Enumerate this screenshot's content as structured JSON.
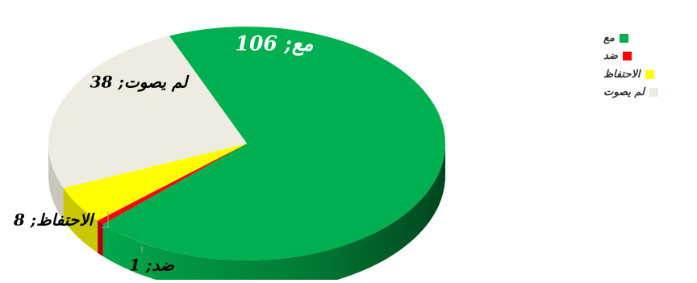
{
  "chart_data": {
    "type": "pie",
    "categories": [
      "مع",
      "ضد",
      "الاحتفاظ",
      "لم يصوت"
    ],
    "values": [
      106,
      1,
      8,
      38
    ],
    "colors": [
      "#00b050",
      "#ff0000",
      "#ffff00",
      "#eeece1"
    ],
    "data_labels": [
      "مع; 106",
      "ضد; 1",
      "الاحتفاظ; 8",
      "لم يصوت; 38"
    ],
    "legend_position": "right",
    "style": "3d-pie"
  }
}
